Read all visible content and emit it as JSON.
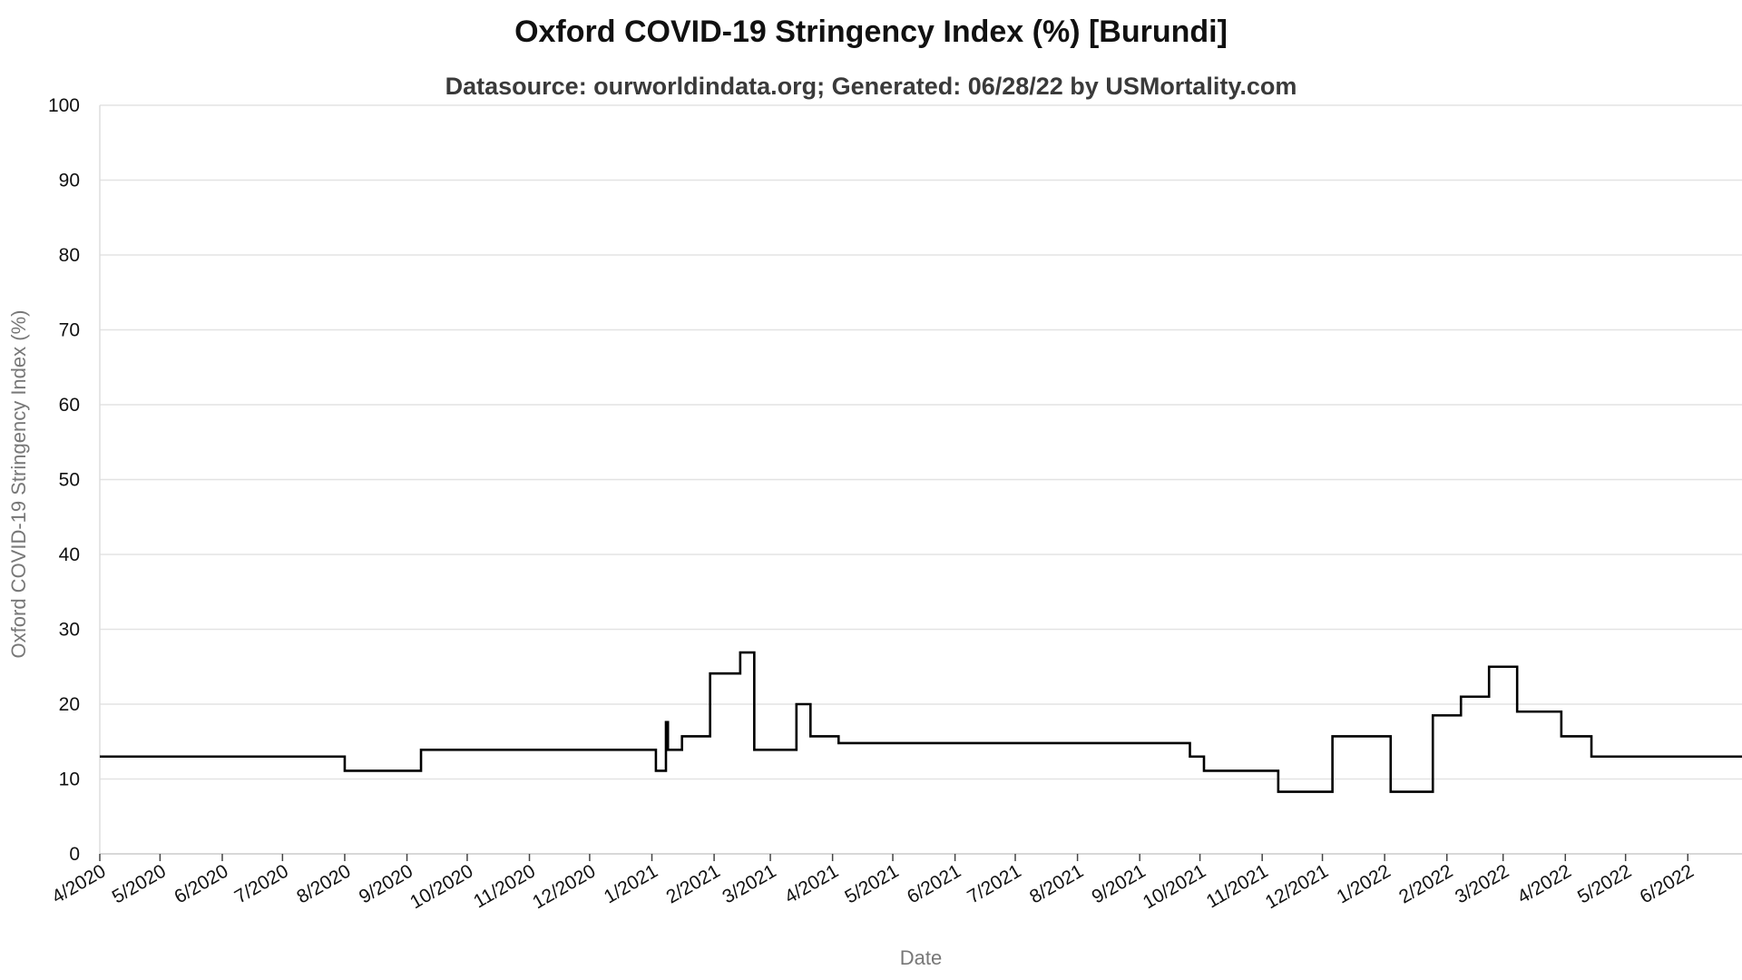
{
  "chart_data": {
    "type": "line",
    "title": "Oxford COVID-19 Stringency Index (%) [Burundi]",
    "subtitle": "Datasource: ourworldindata.org; Generated: 06/28/22 by USMortality.com",
    "xlabel": "Date",
    "ylabel": "Oxford COVID-19 Stringency Index (%)",
    "ylim": [
      0,
      100
    ],
    "xlim": [
      "2020-04-01",
      "2022-06-28"
    ],
    "yticks": [
      0,
      10,
      20,
      30,
      40,
      50,
      60,
      70,
      80,
      90,
      100
    ],
    "xticks": [
      {
        "date": "2020-04-01",
        "label": "4/2020"
      },
      {
        "date": "2020-05-01",
        "label": "5/2020"
      },
      {
        "date": "2020-06-01",
        "label": "6/2020"
      },
      {
        "date": "2020-07-01",
        "label": "7/2020"
      },
      {
        "date": "2020-08-01",
        "label": "8/2020"
      },
      {
        "date": "2020-09-01",
        "label": "9/2020"
      },
      {
        "date": "2020-10-01",
        "label": "10/2020"
      },
      {
        "date": "2020-11-01",
        "label": "11/2020"
      },
      {
        "date": "2020-12-01",
        "label": "12/2020"
      },
      {
        "date": "2021-01-01",
        "label": "1/2021"
      },
      {
        "date": "2021-02-01",
        "label": "2/2021"
      },
      {
        "date": "2021-03-01",
        "label": "3/2021"
      },
      {
        "date": "2021-04-01",
        "label": "4/2021"
      },
      {
        "date": "2021-05-01",
        "label": "5/2021"
      },
      {
        "date": "2021-06-01",
        "label": "6/2021"
      },
      {
        "date": "2021-07-01",
        "label": "7/2021"
      },
      {
        "date": "2021-08-01",
        "label": "8/2021"
      },
      {
        "date": "2021-09-01",
        "label": "9/2021"
      },
      {
        "date": "2021-10-01",
        "label": "10/2021"
      },
      {
        "date": "2021-11-01",
        "label": "11/2021"
      },
      {
        "date": "2021-12-01",
        "label": "12/2021"
      },
      {
        "date": "2022-01-01",
        "label": "1/2022"
      },
      {
        "date": "2022-02-01",
        "label": "2/2022"
      },
      {
        "date": "2022-03-01",
        "label": "3/2022"
      },
      {
        "date": "2022-04-01",
        "label": "4/2022"
      },
      {
        "date": "2022-05-01",
        "label": "5/2022"
      },
      {
        "date": "2022-06-01",
        "label": "6/2022"
      }
    ],
    "grid": true,
    "series": [
      {
        "color": "#000000",
        "step": "after",
        "points": [
          {
            "x": "2020-04-01",
            "y": 13.0
          },
          {
            "x": "2020-08-01",
            "y": 11.1
          },
          {
            "x": "2020-09-08",
            "y": 13.9
          },
          {
            "x": "2021-01-03",
            "y": 11.1
          },
          {
            "x": "2021-01-08",
            "y": 17.6
          },
          {
            "x": "2021-01-09",
            "y": 13.9
          },
          {
            "x": "2021-01-16",
            "y": 15.7
          },
          {
            "x": "2021-01-30",
            "y": 24.1
          },
          {
            "x": "2021-02-14",
            "y": 26.9
          },
          {
            "x": "2021-02-21",
            "y": 13.9
          },
          {
            "x": "2021-03-14",
            "y": 20.0
          },
          {
            "x": "2021-03-21",
            "y": 15.7
          },
          {
            "x": "2021-04-04",
            "y": 14.8
          },
          {
            "x": "2021-09-26",
            "y": 13.0
          },
          {
            "x": "2021-10-03",
            "y": 11.1
          },
          {
            "x": "2021-11-09",
            "y": 8.3
          },
          {
            "x": "2021-12-06",
            "y": 15.7
          },
          {
            "x": "2022-01-04",
            "y": 8.3
          },
          {
            "x": "2022-01-25",
            "y": 18.5
          },
          {
            "x": "2022-02-08",
            "y": 21.0
          },
          {
            "x": "2022-02-22",
            "y": 25.0
          },
          {
            "x": "2022-03-08",
            "y": 19.0
          },
          {
            "x": "2022-03-30",
            "y": 15.7
          },
          {
            "x": "2022-04-14",
            "y": 13.0
          },
          {
            "x": "2022-06-28",
            "y": 13.0
          }
        ]
      }
    ]
  }
}
